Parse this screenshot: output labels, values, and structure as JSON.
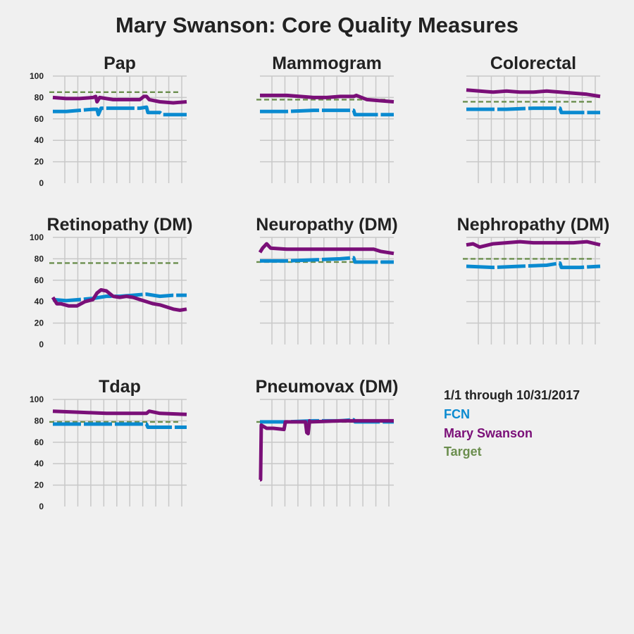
{
  "title": "Mary Swanson: Core Quality Measures",
  "colors": {
    "fcn": "#0a8ad0",
    "provider": "#7a0f78",
    "target": "#6b8e4e",
    "background": "#f0f0f0",
    "grid": "#c8c8c8"
  },
  "legend": {
    "period": "1/1 through 10/31/2017",
    "fcn": "FCN",
    "provider": "Mary Swanson",
    "target": "Target"
  },
  "chart_data": [
    {
      "type": "line",
      "title": "Pap",
      "ylim": [
        0,
        100
      ],
      "yticks": [
        0,
        20,
        40,
        60,
        80,
        100
      ],
      "xlim": [
        0,
        1
      ],
      "grid": true,
      "target": 85,
      "series": [
        {
          "name": "FCN",
          "x": [
            0,
            0.1,
            0.2,
            0.3,
            0.33,
            0.34,
            0.36,
            0.45,
            0.55,
            0.65,
            0.7,
            0.71,
            0.8,
            0.82,
            1.0
          ],
          "y": [
            67,
            67,
            68,
            69,
            69,
            64,
            70,
            70,
            70,
            70,
            71,
            66,
            66,
            64,
            64
          ]
        },
        {
          "name": "Mary Swanson",
          "x": [
            0,
            0.1,
            0.2,
            0.3,
            0.32,
            0.33,
            0.35,
            0.45,
            0.55,
            0.65,
            0.68,
            0.7,
            0.72,
            0.8,
            0.9,
            1.0
          ],
          "y": [
            80,
            79,
            79,
            80,
            81,
            76,
            80,
            78,
            78,
            78,
            81,
            81,
            78,
            76,
            75,
            76
          ]
        }
      ]
    },
    {
      "type": "line",
      "title": "Mammogram",
      "ylim": [
        0,
        100
      ],
      "yticks": [
        0,
        20,
        40,
        60,
        80,
        100
      ],
      "xlim": [
        0,
        1
      ],
      "grid": true,
      "target": 78,
      "series": [
        {
          "name": "FCN",
          "x": [
            0,
            0.2,
            0.4,
            0.6,
            0.7,
            0.71,
            0.85,
            1.0
          ],
          "y": [
            67,
            67,
            68,
            68,
            68,
            64,
            64,
            64
          ]
        },
        {
          "name": "Mary Swanson",
          "x": [
            0,
            0.1,
            0.2,
            0.3,
            0.4,
            0.5,
            0.6,
            0.7,
            0.72,
            0.8,
            0.9,
            1.0
          ],
          "y": [
            82,
            82,
            82,
            81,
            80,
            80,
            81,
            81,
            82,
            78,
            77,
            76
          ]
        }
      ]
    },
    {
      "type": "line",
      "title": "Colorectal",
      "ylim": [
        0,
        100
      ],
      "yticks": [
        0,
        20,
        40,
        60,
        80,
        100
      ],
      "xlim": [
        0,
        1
      ],
      "grid": true,
      "target": 76,
      "series": [
        {
          "name": "FCN",
          "x": [
            0,
            0.3,
            0.5,
            0.7,
            0.71,
            0.85,
            1.0
          ],
          "y": [
            69,
            69,
            70,
            70,
            66,
            66,
            66
          ]
        },
        {
          "name": "Mary Swanson",
          "x": [
            0,
            0.1,
            0.2,
            0.3,
            0.4,
            0.5,
            0.6,
            0.7,
            0.8,
            0.9,
            1.0
          ],
          "y": [
            87,
            86,
            85,
            86,
            85,
            85,
            86,
            85,
            84,
            83,
            81
          ]
        }
      ]
    },
    {
      "type": "line",
      "title": "Retinopathy (DM)",
      "ylim": [
        0,
        100
      ],
      "yticks": [
        0,
        20,
        40,
        60,
        80,
        100
      ],
      "xlim": [
        0,
        1
      ],
      "grid": true,
      "target": 76,
      "series": [
        {
          "name": "FCN",
          "x": [
            0,
            0.1,
            0.2,
            0.3,
            0.35,
            0.4,
            0.5,
            0.6,
            0.7,
            0.8,
            0.9,
            1.0
          ],
          "y": [
            42,
            41,
            42,
            43,
            44,
            45,
            45,
            46,
            47,
            45,
            46,
            46
          ]
        },
        {
          "name": "Mary Swanson",
          "x": [
            0,
            0.03,
            0.06,
            0.12,
            0.18,
            0.24,
            0.3,
            0.33,
            0.36,
            0.4,
            0.45,
            0.5,
            0.55,
            0.6,
            0.65,
            0.7,
            0.75,
            0.8,
            0.85,
            0.9,
            0.95,
            1.0
          ],
          "y": [
            44,
            38,
            38,
            36,
            36,
            40,
            42,
            48,
            51,
            50,
            45,
            44,
            45,
            44,
            42,
            40,
            38,
            37,
            35,
            33,
            32,
            33
          ]
        }
      ]
    },
    {
      "type": "line",
      "title": "Neuropathy (DM)",
      "ylim": [
        0,
        100
      ],
      "yticks": [
        0,
        20,
        40,
        60,
        80,
        100
      ],
      "xlim": [
        0,
        1
      ],
      "grid": true,
      "target": 77,
      "series": [
        {
          "name": "FCN",
          "x": [
            0,
            0.2,
            0.4,
            0.6,
            0.7,
            0.71,
            0.85,
            1.0
          ],
          "y": [
            78,
            78,
            79,
            80,
            81,
            77,
            77,
            77
          ]
        },
        {
          "name": "Mary Swanson",
          "x": [
            0,
            0.02,
            0.05,
            0.08,
            0.2,
            0.4,
            0.6,
            0.75,
            0.85,
            0.9,
            1.0
          ],
          "y": [
            86,
            90,
            94,
            90,
            89,
            89,
            89,
            89,
            89,
            87,
            85
          ]
        }
      ]
    },
    {
      "type": "line",
      "title": "Nephropathy (DM)",
      "ylim": [
        0,
        100
      ],
      "yticks": [
        0,
        20,
        40,
        60,
        80,
        100
      ],
      "xlim": [
        0,
        1
      ],
      "grid": true,
      "target": 80,
      "series": [
        {
          "name": "FCN",
          "x": [
            0,
            0.2,
            0.4,
            0.6,
            0.7,
            0.71,
            0.85,
            1.0
          ],
          "y": [
            73,
            72,
            73,
            74,
            76,
            72,
            72,
            73
          ]
        },
        {
          "name": "Mary Swanson",
          "x": [
            0,
            0.05,
            0.1,
            0.2,
            0.3,
            0.4,
            0.5,
            0.6,
            0.7,
            0.8,
            0.9,
            1.0
          ],
          "y": [
            93,
            94,
            91,
            94,
            95,
            96,
            95,
            95,
            95,
            95,
            96,
            93
          ]
        }
      ]
    },
    {
      "type": "line",
      "title": "Tdap",
      "ylim": [
        0,
        100
      ],
      "yticks": [
        0,
        20,
        40,
        60,
        80,
        100
      ],
      "xlim": [
        0,
        1
      ],
      "grid": true,
      "target": 79,
      "series": [
        {
          "name": "FCN",
          "x": [
            0,
            0.2,
            0.4,
            0.6,
            0.7,
            0.71,
            0.85,
            1.0
          ],
          "y": [
            77,
            77,
            77,
            77,
            77,
            74,
            74,
            74
          ]
        },
        {
          "name": "Mary Swanson",
          "x": [
            0,
            0.2,
            0.4,
            0.6,
            0.7,
            0.72,
            0.8,
            1.0
          ],
          "y": [
            89,
            88,
            87,
            87,
            87,
            89,
            87,
            86
          ]
        }
      ]
    },
    {
      "type": "line",
      "title": "Pneumovax (DM)",
      "ylim": [
        0,
        100
      ],
      "yticks": [
        0,
        20,
        40,
        60,
        80,
        100
      ],
      "xlim": [
        0,
        1
      ],
      "grid": true,
      "target": 79,
      "series": [
        {
          "name": "FCN",
          "x": [
            0,
            0.2,
            0.4,
            0.6,
            0.7,
            0.71,
            0.85,
            1.0
          ],
          "y": [
            79,
            79,
            80,
            80,
            81,
            79,
            79,
            79
          ]
        },
        {
          "name": "Mary Swanson",
          "x": [
            0,
            0.005,
            0.01,
            0.05,
            0.1,
            0.18,
            0.19,
            0.34,
            0.35,
            0.36,
            0.37,
            0.38,
            0.6,
            0.8,
            1.0
          ],
          "y": [
            25,
            25,
            76,
            73,
            73,
            72,
            79,
            79,
            69,
            68,
            80,
            79,
            80,
            80,
            80
          ]
        }
      ]
    }
  ]
}
